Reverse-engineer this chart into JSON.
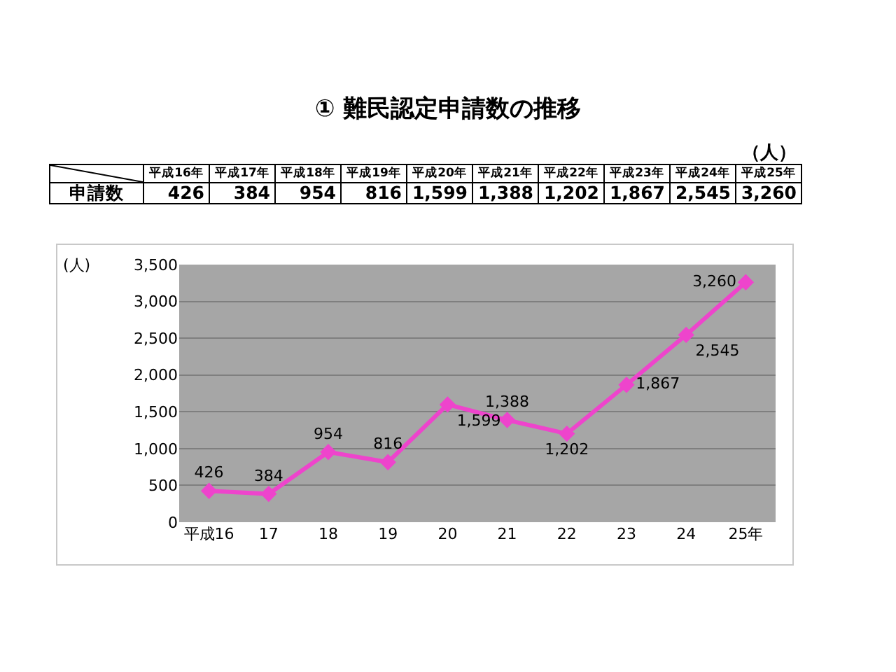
{
  "chart_data": {
    "type": "line",
    "title": "① 難民認定申請数の推移",
    "ylabel": "(人)",
    "categories": [
      "平成16",
      "17",
      "18",
      "19",
      "20",
      "21",
      "22",
      "23",
      "24",
      "25年"
    ],
    "series": [
      {
        "color": "#ee44cc",
        "values": [
          426,
          384,
          954,
          816,
          1599,
          1388,
          1202,
          1867,
          2545,
          3260
        ],
        "value_labels": [
          "426",
          "384",
          "954",
          "816",
          "1,599",
          "1,388",
          "1,202",
          "1,867",
          "2,545",
          "3,260"
        ]
      }
    ],
    "ylim": [
      0,
      3500
    ],
    "yticks": [
      {
        "value": 0,
        "label": "0"
      },
      {
        "value": 500,
        "label": "500"
      },
      {
        "value": 1000,
        "label": "1,000"
      },
      {
        "value": 1500,
        "label": "1,500"
      },
      {
        "value": 2000,
        "label": "2,000"
      },
      {
        "value": 2500,
        "label": "2,500"
      },
      {
        "value": 3000,
        "label": "3,000"
      },
      {
        "value": 3500,
        "label": "3,500"
      }
    ],
    "grid": "y",
    "marker": "diamond",
    "line_style": "solid",
    "legend": false,
    "data_labels": true,
    "annotations": [
      "（人）",
      "申請数",
      "平成16年",
      "平成17年",
      "平成18年",
      "平成19年",
      "平成20年",
      "平成21年",
      "平成22年",
      "平成23年",
      "平成24年",
      "平成25年"
    ]
  }
}
